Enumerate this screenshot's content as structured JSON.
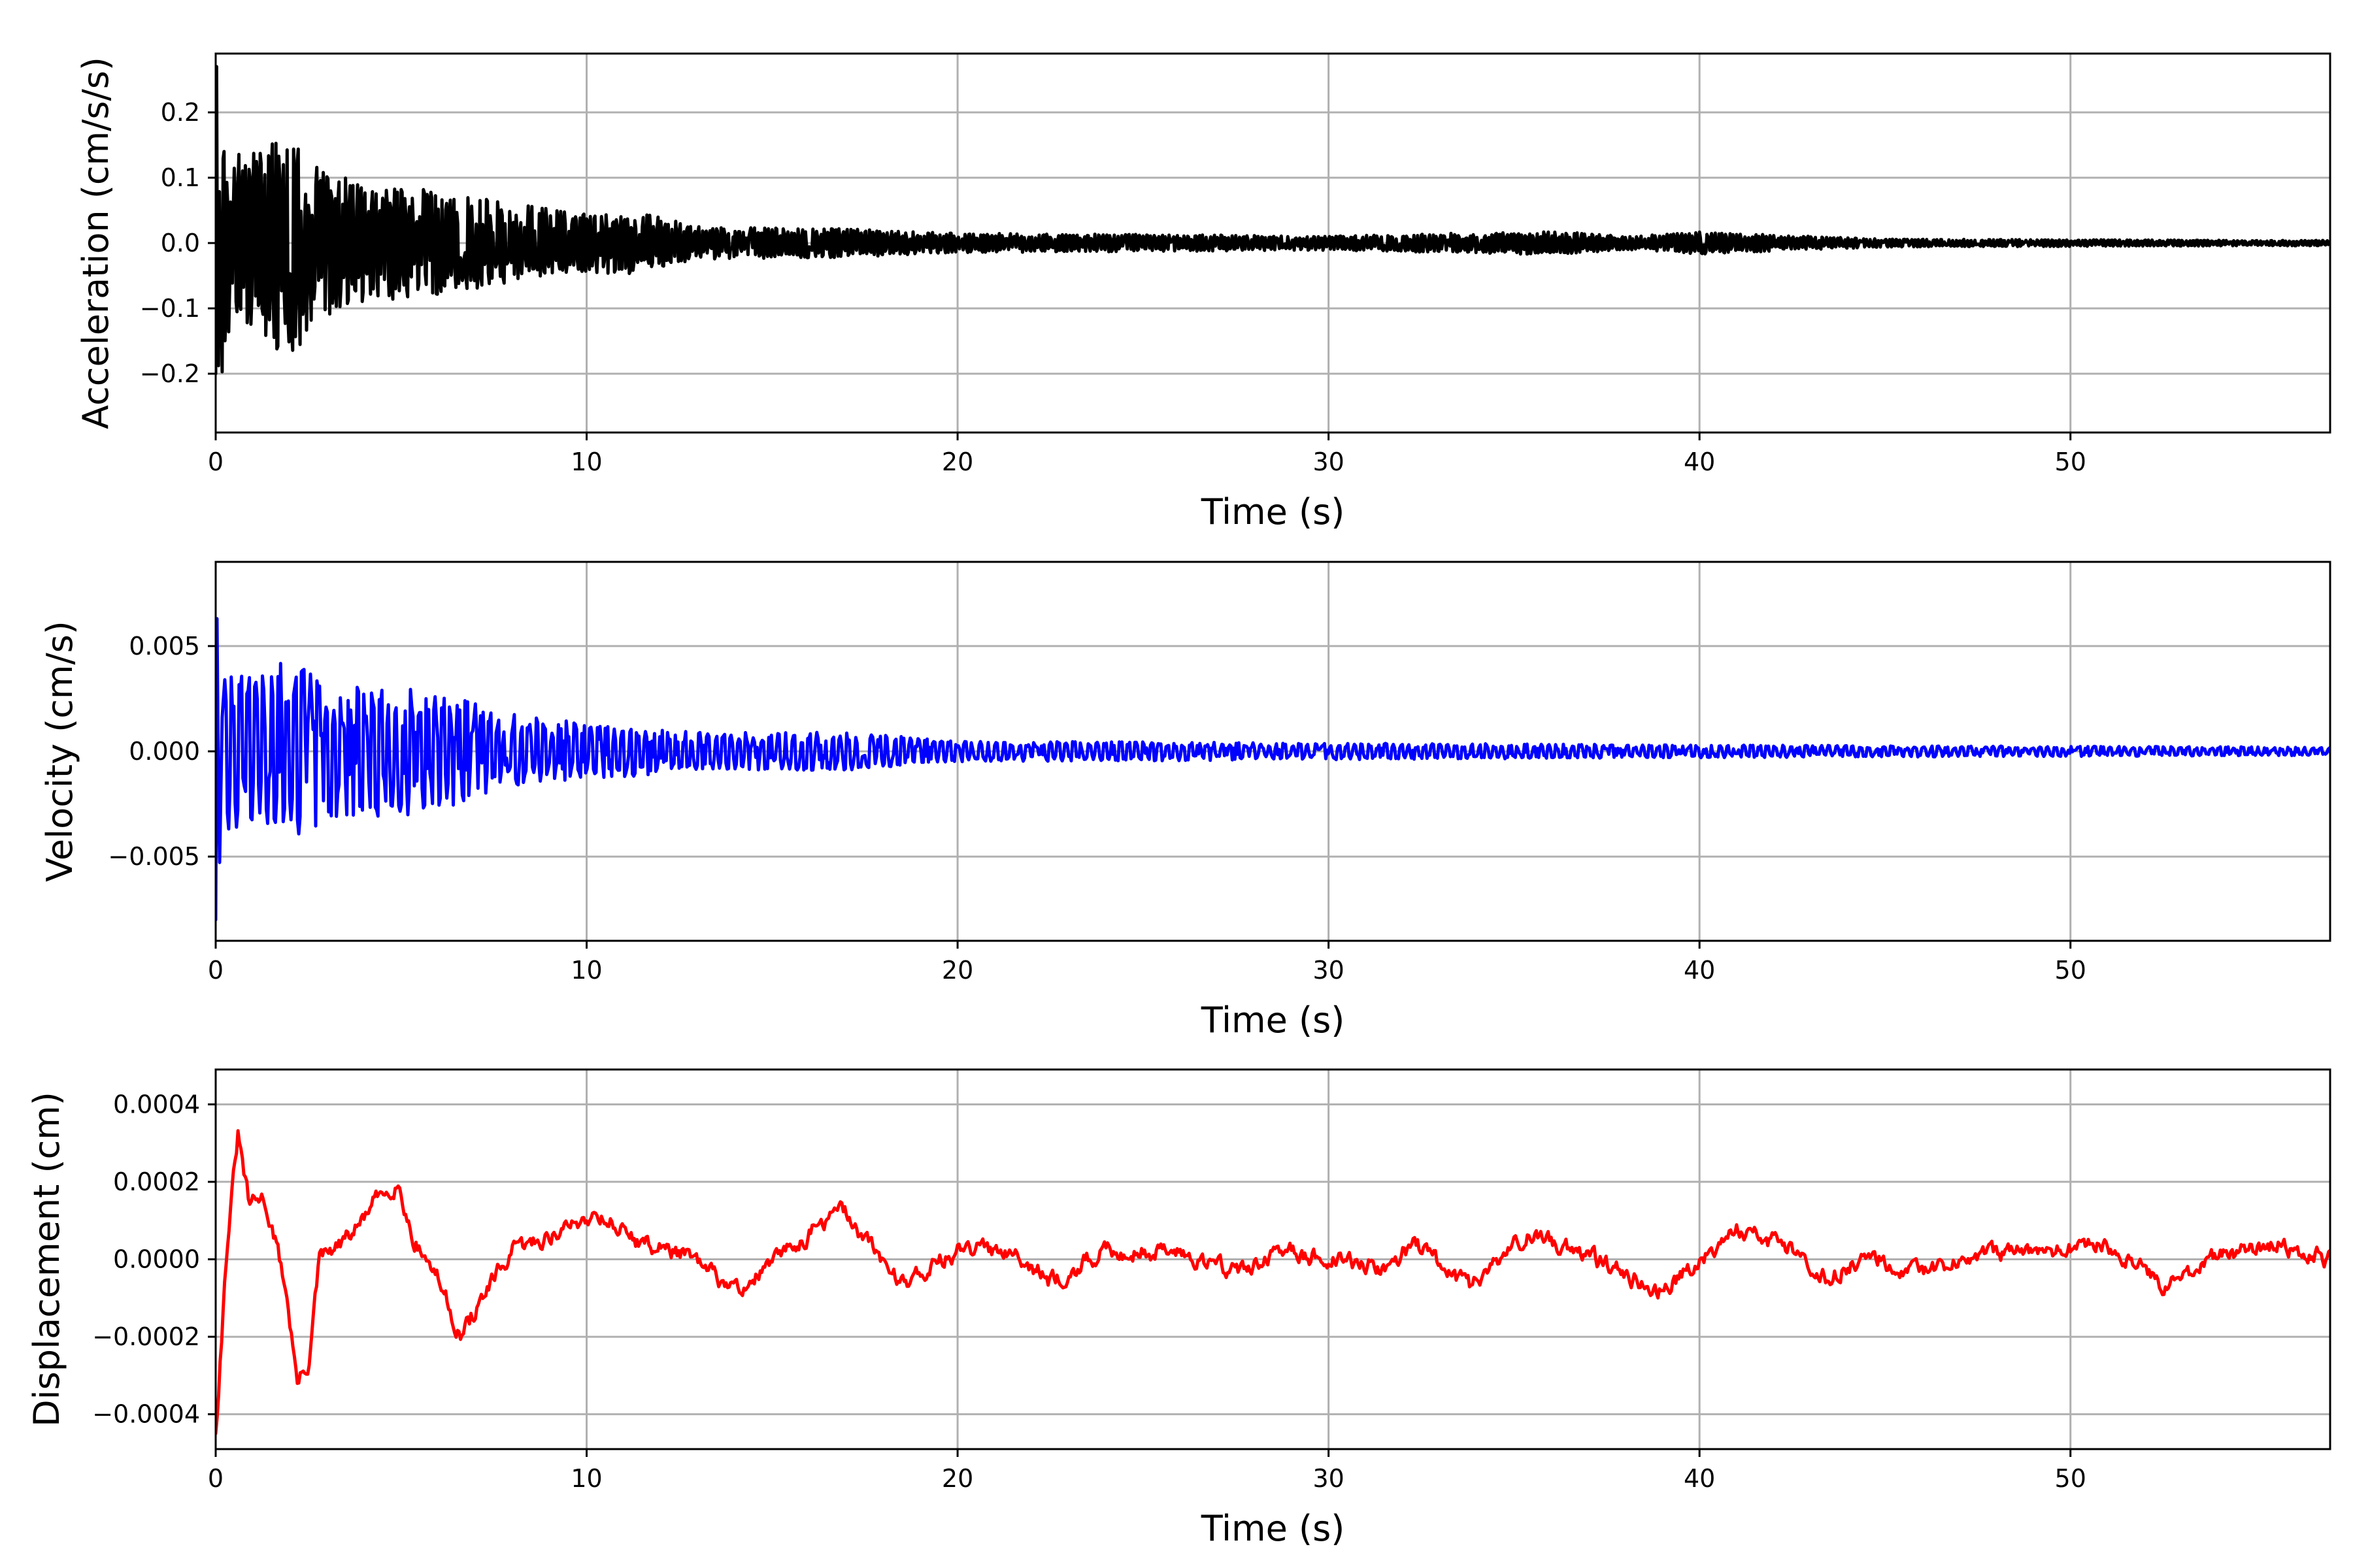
{
  "chart_data": [
    {
      "type": "line",
      "id": "acceleration",
      "xlabel": "Time (s)",
      "ylabel": "Acceleration (cm/s/s)",
      "xlim": [
        0,
        57
      ],
      "ylim": [
        -0.29,
        0.29
      ],
      "xticks": [
        0,
        10,
        20,
        30,
        40,
        50
      ],
      "xtick_labels": [
        "0",
        "10",
        "20",
        "30",
        "40",
        "50"
      ],
      "yticks": [
        -0.2,
        -0.1,
        0.0,
        0.1,
        0.2
      ],
      "ytick_labels": [
        "−0.2",
        "−0.1",
        "0.0",
        "0.1",
        "0.2"
      ],
      "grid": true,
      "color": "#000000",
      "signal": {
        "start_value": -0.2,
        "peak_value": 0.27,
        "duration": 57,
        "envelope": [
          [
            0,
            0.27
          ],
          [
            0.3,
            0.15
          ],
          [
            1.0,
            0.14
          ],
          [
            2.1,
            0.18
          ],
          [
            2.6,
            0.12
          ],
          [
            4,
            0.09
          ],
          [
            6,
            0.08
          ],
          [
            8,
            0.06
          ],
          [
            10,
            0.045
          ],
          [
            11.2,
            0.05
          ],
          [
            13,
            0.025
          ],
          [
            17,
            0.022
          ],
          [
            20,
            0.015
          ],
          [
            30,
            0.011
          ],
          [
            36.2,
            0.018
          ],
          [
            38,
            0.01
          ],
          [
            40,
            0.017
          ],
          [
            45,
            0.006
          ],
          [
            57,
            0.004
          ]
        ]
      }
    },
    {
      "type": "line",
      "id": "velocity",
      "xlabel": "Time (s)",
      "ylabel": "Velocity (cm/s)",
      "xlim": [
        0,
        57
      ],
      "ylim": [
        -0.009,
        0.009
      ],
      "xticks": [
        0,
        10,
        20,
        30,
        40,
        50
      ],
      "xtick_labels": [
        "0",
        "10",
        "20",
        "30",
        "40",
        "50"
      ],
      "yticks": [
        -0.005,
        0.0,
        0.005
      ],
      "ytick_labels": [
        "−0.005",
        "0.000",
        "0.005"
      ],
      "grid": true,
      "color": "#0000ff",
      "signal": {
        "start_value": -0.008,
        "peak_value": 0.0063,
        "duration": 57,
        "envelope": [
          [
            0,
            0.0063
          ],
          [
            0.5,
            0.004
          ],
          [
            1.0,
            0.0035
          ],
          [
            2.1,
            0.0045
          ],
          [
            3,
            0.0032
          ],
          [
            5.5,
            0.003
          ],
          [
            8,
            0.0018
          ],
          [
            10,
            0.0014
          ],
          [
            13,
            0.0009
          ],
          [
            17,
            0.0009
          ],
          [
            20,
            0.0005
          ],
          [
            30,
            0.0004
          ],
          [
            40,
            0.0003
          ],
          [
            57,
            0.0002
          ]
        ]
      }
    },
    {
      "type": "line",
      "id": "displacement",
      "xlabel": "Time (s)",
      "ylabel": "Displacement (cm)",
      "xlim": [
        0,
        57
      ],
      "ylim": [
        -0.00049,
        0.00049
      ],
      "xticks": [
        0,
        10,
        20,
        30,
        40,
        50
      ],
      "xtick_labels": [
        "0",
        "10",
        "20",
        "30",
        "40",
        "50"
      ],
      "yticks": [
        -0.0004,
        -0.0002,
        0.0,
        0.0002,
        0.0004
      ],
      "ytick_labels": [
        "−0.0004",
        "−0.0002",
        "0.0000",
        "0.0002",
        "0.0004"
      ],
      "grid": true,
      "color": "#ff0000",
      "trend": [
        [
          0,
          -0.00045
        ],
        [
          0.3,
          3e-05
        ],
        [
          0.6,
          0.00032
        ],
        [
          0.9,
          0.00014
        ],
        [
          1.3,
          0.00016
        ],
        [
          1.6,
          5e-05
        ],
        [
          1.9,
          -8e-05
        ],
        [
          2.2,
          -0.00032
        ],
        [
          2.5,
          -0.00027
        ],
        [
          2.8,
          0.0
        ],
        [
          3.3,
          3e-05
        ],
        [
          3.8,
          8e-05
        ],
        [
          4.3,
          0.00015
        ],
        [
          4.9,
          0.0002
        ],
        [
          5.3,
          6e-05
        ],
        [
          6.0,
          -5e-05
        ],
        [
          6.6,
          -0.0002
        ],
        [
          7.2,
          -0.0001
        ],
        [
          8.0,
          2e-05
        ],
        [
          9.0,
          6e-05
        ],
        [
          10.3,
          0.00012
        ],
        [
          11.5,
          4e-05
        ],
        [
          12.5,
          2e-05
        ],
        [
          14.0,
          -8e-05
        ],
        [
          14.5,
          -5e-05
        ],
        [
          15.5,
          3e-05
        ],
        [
          16.9,
          0.00013
        ],
        [
          17.6,
          4e-05
        ],
        [
          18.5,
          -6e-05
        ],
        [
          20.0,
          2e-05
        ],
        [
          21.5,
          3e-05
        ],
        [
          22.5,
          -6e-05
        ],
        [
          24.0,
          2e-05
        ],
        [
          26.0,
          2e-05
        ],
        [
          27.5,
          -3e-05
        ],
        [
          29.0,
          2e-05
        ],
        [
          30.0,
          0.0
        ],
        [
          31.5,
          -2e-05
        ],
        [
          32.3,
          4e-05
        ],
        [
          33.8,
          -7e-05
        ],
        [
          35.3,
          6e-05
        ],
        [
          36.6,
          3e-05
        ],
        [
          38.0,
          -4e-05
        ],
        [
          39.0,
          -8e-05
        ],
        [
          40.0,
          0.0
        ],
        [
          41.0,
          8e-05
        ],
        [
          42.5,
          3e-05
        ],
        [
          43.5,
          -5e-05
        ],
        [
          44.5,
          1e-05
        ],
        [
          46.0,
          -4e-05
        ],
        [
          47.5,
          1e-05
        ],
        [
          49.5,
          2e-05
        ],
        [
          51.0,
          4e-05
        ],
        [
          52.5,
          -7e-05
        ],
        [
          54.0,
          1e-05
        ],
        [
          55.5,
          4e-05
        ],
        [
          57.0,
          0.0
        ]
      ],
      "noise_amplitude": 3e-05
    }
  ]
}
